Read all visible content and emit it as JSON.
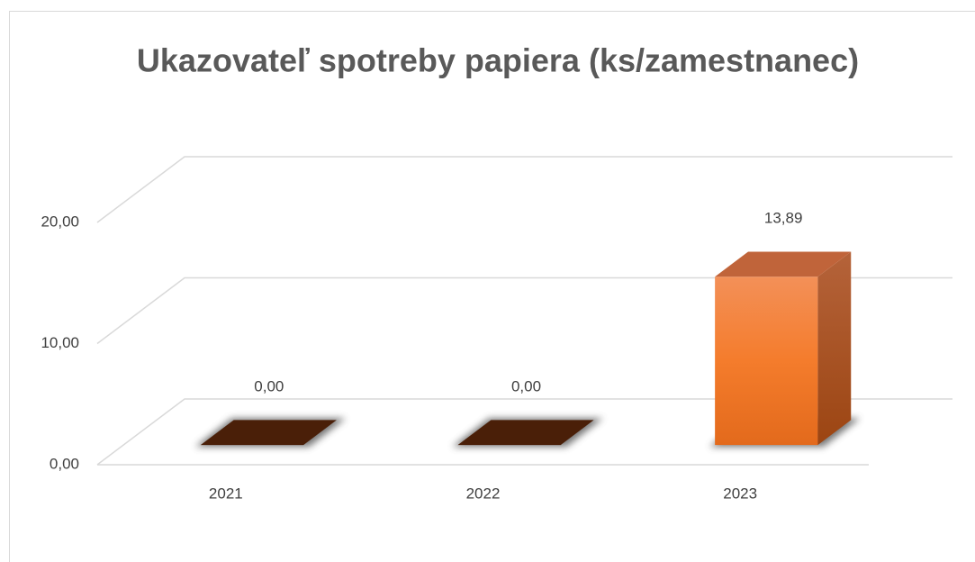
{
  "chart_data": {
    "type": "bar3d",
    "title": "Ukazovateľ spotreby papiera (ks/zamestnanec)",
    "categories": [
      "2021",
      "2022",
      "2023"
    ],
    "values": [
      0,
      0,
      13.89
    ],
    "value_labels": [
      "0,00",
      "0,00",
      "13,89"
    ],
    "color": "#f47c2c",
    "ylim": [
      0,
      20
    ],
    "yticks": [
      {
        "value": 0,
        "label": "0,00"
      },
      {
        "value": 10,
        "label": "10,00"
      },
      {
        "value": 20,
        "label": "20,00"
      }
    ],
    "grid": true
  }
}
